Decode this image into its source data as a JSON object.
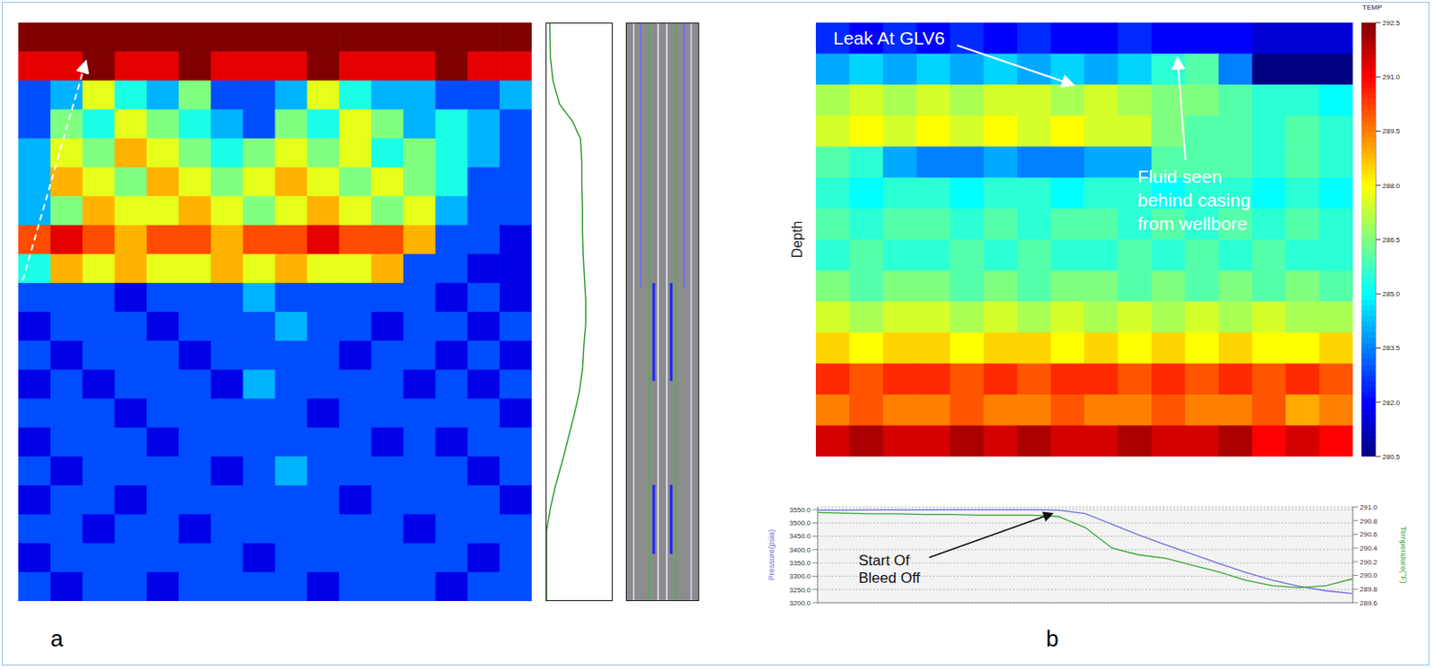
{
  "chart_data": [
    {
      "type": "heatmap",
      "panel": "a",
      "tick_labels": false,
      "color_range": [
        0,
        10
      ],
      "cells": [
        [
          10,
          10,
          10,
          10,
          10,
          10,
          10,
          10,
          10,
          10,
          10,
          10,
          10,
          10,
          10,
          10
        ],
        [
          9,
          9,
          10,
          9,
          9,
          10,
          9,
          9,
          9,
          10,
          9,
          9,
          9,
          10,
          9,
          9
        ],
        [
          2,
          3,
          6,
          4,
          3,
          5,
          2,
          2,
          3,
          6,
          4,
          3,
          3,
          2,
          2,
          3
        ],
        [
          2,
          5,
          4,
          6,
          5,
          4,
          3,
          2,
          5,
          4,
          6,
          5,
          3,
          4,
          3,
          2
        ],
        [
          3,
          6,
          5,
          7,
          6,
          5,
          4,
          5,
          6,
          5,
          6,
          4,
          5,
          4,
          3,
          2
        ],
        [
          3,
          7,
          6,
          5,
          7,
          6,
          5,
          6,
          7,
          6,
          5,
          6,
          5,
          4,
          2,
          2
        ],
        [
          3,
          5,
          7,
          6,
          6,
          7,
          6,
          5,
          6,
          7,
          6,
          5,
          6,
          3,
          2,
          2
        ],
        [
          8,
          9,
          8,
          7,
          8,
          8,
          7,
          8,
          8,
          9,
          8,
          8,
          7,
          2,
          2,
          1
        ],
        [
          4,
          7,
          6,
          7,
          6,
          6,
          7,
          6,
          7,
          6,
          6,
          7,
          2,
          2,
          1,
          1
        ],
        [
          2,
          2,
          2,
          1,
          2,
          2,
          2,
          3,
          2,
          2,
          2,
          2,
          2,
          1,
          2,
          1
        ],
        [
          1,
          2,
          2,
          2,
          1,
          2,
          2,
          2,
          3,
          2,
          2,
          1,
          2,
          2,
          1,
          2
        ],
        [
          2,
          1,
          2,
          2,
          2,
          1,
          2,
          2,
          2,
          2,
          1,
          2,
          2,
          1,
          2,
          1
        ],
        [
          1,
          2,
          1,
          2,
          2,
          2,
          1,
          3,
          2,
          2,
          2,
          2,
          1,
          2,
          1,
          2
        ],
        [
          2,
          2,
          2,
          1,
          2,
          2,
          2,
          2,
          2,
          1,
          2,
          2,
          2,
          2,
          2,
          1
        ],
        [
          1,
          2,
          2,
          2,
          1,
          2,
          2,
          2,
          2,
          2,
          2,
          1,
          2,
          1,
          2,
          2
        ],
        [
          2,
          1,
          2,
          2,
          2,
          2,
          1,
          2,
          3,
          2,
          2,
          2,
          2,
          2,
          1,
          2
        ],
        [
          1,
          2,
          2,
          1,
          2,
          2,
          2,
          2,
          2,
          2,
          1,
          2,
          2,
          2,
          2,
          1
        ],
        [
          2,
          2,
          1,
          2,
          2,
          1,
          2,
          2,
          2,
          2,
          2,
          2,
          1,
          2,
          2,
          2
        ],
        [
          1,
          2,
          2,
          2,
          2,
          2,
          2,
          1,
          2,
          2,
          2,
          2,
          2,
          2,
          1,
          2
        ],
        [
          2,
          1,
          2,
          2,
          1,
          2,
          2,
          2,
          2,
          1,
          2,
          2,
          2,
          1,
          2,
          2
        ]
      ]
    },
    {
      "type": "line",
      "tick_labels": false,
      "color": "#2e9e2e",
      "xlim": [
        0,
        1
      ],
      "ylim": [
        0,
        100
      ],
      "depth": [
        0,
        12,
        16,
        20,
        24,
        28,
        32,
        36,
        40,
        44,
        48,
        52,
        56,
        60,
        64,
        68,
        72,
        76,
        80,
        83,
        86,
        90,
        94,
        100
      ],
      "values": [
        0,
        0,
        0.06,
        0.14,
        0.24,
        0.33,
        0.42,
        0.5,
        0.55,
        0.57,
        0.6,
        0.6,
        0.58,
        0.56,
        0.55,
        0.55,
        0.54,
        0.54,
        0.52,
        0.4,
        0.2,
        0.1,
        0.06,
        0.05
      ]
    },
    {
      "type": "heatmap",
      "panel": "b",
      "tick_labels": false,
      "y_label": "Depth",
      "annotations": [
        "Leak At GLV6",
        "Fluid seen behind casing from wellbore"
      ],
      "colorbar": {
        "title": "TEMP",
        "range": [
          280.5,
          292.5
        ],
        "ticks": [
          280.5,
          {
            "value": 282,
            "label": "282.0"
          },
          283.5,
          {
            "value": 285,
            "label": "285.0"
          },
          286.5,
          {
            "value": 288,
            "label": "288.0"
          },
          289.5,
          {
            "value": 291,
            "label": "291.0"
          },
          292.5
        ]
      },
      "cells": [
        [
          282.5,
          282.0,
          282.5,
          282.0,
          282.5,
          282.0,
          282.5,
          282.0,
          282.0,
          282.5,
          282.0,
          282.0,
          282.0,
          281.5,
          281.5,
          281.5
        ],
        [
          284.0,
          284.5,
          284.0,
          284.5,
          284.0,
          284.5,
          284.0,
          284.5,
          284.0,
          284.5,
          285.5,
          286.0,
          283.5,
          280.5,
          280.5,
          280.5
        ],
        [
          287.0,
          287.5,
          287.0,
          287.5,
          287.0,
          287.5,
          287.5,
          287.0,
          287.5,
          287.0,
          286.5,
          286.5,
          286.0,
          285.5,
          285.5,
          285.0
        ],
        [
          287.5,
          288.0,
          287.5,
          288.0,
          287.5,
          288.0,
          287.5,
          288.0,
          287.5,
          287.5,
          286.5,
          286.0,
          286.0,
          285.5,
          286.0,
          285.5
        ],
        [
          286.0,
          285.5,
          284.0,
          283.5,
          283.5,
          284.0,
          283.5,
          283.5,
          284.0,
          284.0,
          286.0,
          286.0,
          286.0,
          285.5,
          286.0,
          285.5
        ],
        [
          285.5,
          285.0,
          285.5,
          285.5,
          285.0,
          285.5,
          285.5,
          285.0,
          285.5,
          285.5,
          285.0,
          285.5,
          285.5,
          285.0,
          285.5,
          285.0
        ],
        [
          286.0,
          285.5,
          286.0,
          286.0,
          285.5,
          286.0,
          285.5,
          286.0,
          286.0,
          285.5,
          286.0,
          285.5,
          286.0,
          285.5,
          286.0,
          285.5
        ],
        [
          285.5,
          286.0,
          285.5,
          285.5,
          286.0,
          285.5,
          286.0,
          285.5,
          285.5,
          286.0,
          285.5,
          286.0,
          285.5,
          286.0,
          285.5,
          285.5
        ],
        [
          286.5,
          286.0,
          286.5,
          286.5,
          286.0,
          286.5,
          286.0,
          286.5,
          286.5,
          286.0,
          286.5,
          286.0,
          286.5,
          286.0,
          286.5,
          286.0
        ],
        [
          287.5,
          287.0,
          287.5,
          287.5,
          287.0,
          287.5,
          287.0,
          287.5,
          287.0,
          287.5,
          287.0,
          287.5,
          287.0,
          287.5,
          287.0,
          287.0
        ],
        [
          288.5,
          288.0,
          288.5,
          288.5,
          288.0,
          288.5,
          288.5,
          288.0,
          288.5,
          288.0,
          288.5,
          288.0,
          288.5,
          288.0,
          288.0,
          288.5
        ],
        [
          290.5,
          290.0,
          290.5,
          290.5,
          290.0,
          290.5,
          290.0,
          290.5,
          290.5,
          290.0,
          290.5,
          290.0,
          290.5,
          290.0,
          290.5,
          290.0
        ],
        [
          289.5,
          290.0,
          289.5,
          289.5,
          290.0,
          289.5,
          289.5,
          290.0,
          289.5,
          289.5,
          290.0,
          289.5,
          289.5,
          290.0,
          289.0,
          289.5
        ],
        [
          291.5,
          292.0,
          291.5,
          291.5,
          292.0,
          291.5,
          292.0,
          291.5,
          291.5,
          292.0,
          291.5,
          291.5,
          292.0,
          291.0,
          291.5,
          291.0
        ]
      ]
    },
    {
      "type": "line",
      "grid": true,
      "tick_labels": "y",
      "annotations": [
        "Start Of Bleed Off"
      ],
      "x": [
        0,
        1,
        2,
        3,
        4,
        5,
        6,
        7,
        8,
        9,
        10,
        11,
        12,
        13,
        14,
        15,
        16,
        17,
        18,
        19,
        20
      ],
      "xlim": [
        0,
        20
      ],
      "xticks": [
        0,
        2,
        4,
        6,
        8,
        10,
        12,
        14,
        16,
        18,
        20
      ],
      "y_label": "Pressure(psia)",
      "y2_label": "Temperature(°F)",
      "ylim": [
        3200,
        3560
      ],
      "yticks": [
        {
          "value": 3200,
          "label": "3200.0"
        },
        {
          "value": 3250,
          "label": "3250.0"
        },
        {
          "value": 3300,
          "label": "3300.0"
        },
        {
          "value": 3350,
          "label": "3350.0"
        },
        {
          "value": 3400,
          "label": "3400.0"
        },
        {
          "value": 3450,
          "label": "3450.0"
        },
        {
          "value": 3500,
          "label": "3500.0"
        },
        {
          "value": 3550,
          "label": "3550.0"
        }
      ],
      "y2lim": [
        289.6,
        291.0
      ],
      "y2ticks": [
        289.6,
        289.8,
        {
          "value": 290,
          "label": "290.0"
        },
        290.2,
        290.4,
        290.6,
        290.8,
        {
          "value": 291,
          "label": "291.0"
        }
      ],
      "series": [
        {
          "color": "#6f6fe0",
          "values": [
            3548,
            3548,
            3549,
            3549,
            3549,
            3550,
            3550,
            3550,
            3550,
            3548,
            3535,
            3495,
            3455,
            3418,
            3383,
            3348,
            3314,
            3285,
            3262,
            3245,
            3235
          ]
        },
        {
          "color": "#33aa33",
          "axis": "y2",
          "values": [
            290.92,
            290.91,
            290.9,
            290.9,
            290.89,
            290.89,
            290.88,
            290.88,
            290.88,
            290.86,
            290.7,
            290.4,
            290.3,
            290.25,
            290.15,
            290.05,
            289.93,
            289.85,
            289.82,
            289.85,
            289.95
          ]
        }
      ]
    }
  ]
}
